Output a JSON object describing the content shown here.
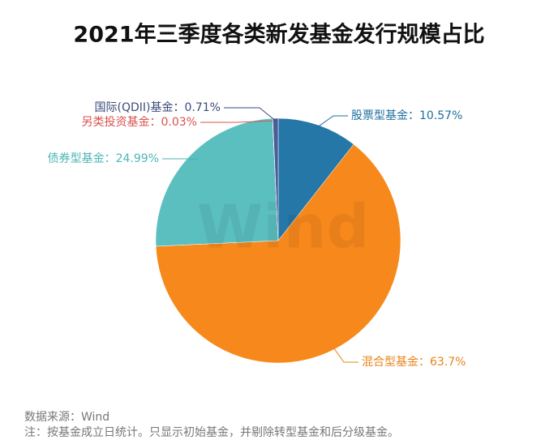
{
  "chart_data": {
    "type": "pie",
    "title": "2021年三季度各类新发基金发行规模占比",
    "categories": [
      "股票型基金",
      "混合型基金",
      "债券型基金",
      "另类投资基金",
      "国际(QDII)基金"
    ],
    "values": [
      10.57,
      63.7,
      24.99,
      0.03,
      0.71
    ],
    "value_labels": [
      "：10.57%",
      "：63.7%",
      "：24.99%",
      "：0.03%",
      "：0.71%"
    ],
    "colors": [
      "#2577a8",
      "#f7891c",
      "#5bbfc0",
      "#e06666",
      "#4a5d9a"
    ],
    "watermark": "Wind",
    "source": "数据来源：Wind",
    "note": "注：按基金成立日统计。只显示初始基金，并剔除转型基金和后分级基金。"
  }
}
